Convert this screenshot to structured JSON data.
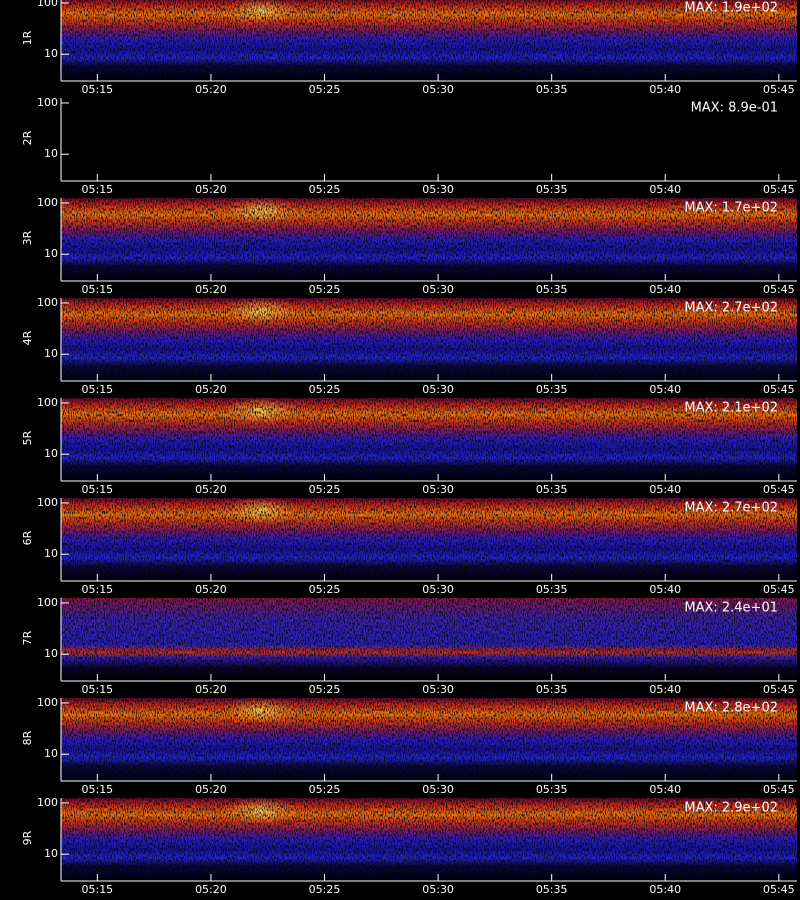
{
  "chart_data": [
    {
      "type": "spectrogram",
      "ylabel": "1R",
      "max": {
        "value": 190,
        "label": "MAX: 1.9e+02"
      },
      "log_y": true,
      "ylim": [
        3,
        125
      ],
      "yticks": [
        10,
        100
      ],
      "xlim": [
        13.4,
        45.8
      ],
      "xticks": [
        {
          "value": 15,
          "label": "05:15"
        },
        {
          "value": 20,
          "label": "05:20"
        },
        {
          "value": 25,
          "label": "05:25"
        },
        {
          "value": 30,
          "label": "05:30"
        },
        {
          "value": 35,
          "label": "05:35"
        },
        {
          "value": 40,
          "label": "05:40"
        },
        {
          "value": 45,
          "label": "05:45"
        }
      ]
    },
    {
      "type": "spectrogram",
      "ylabel": "2R",
      "max": {
        "value": 0.89,
        "label": "MAX: 8.9e-01"
      },
      "log_y": true,
      "ylim": [
        3,
        125
      ],
      "yticks": [
        10,
        100
      ],
      "xlim": [
        13.4,
        45.8
      ],
      "xticks": [
        {
          "value": 15,
          "label": "05:15"
        },
        {
          "value": 20,
          "label": "05:20"
        },
        {
          "value": 25,
          "label": "05:25"
        },
        {
          "value": 30,
          "label": "05:30"
        },
        {
          "value": 35,
          "label": "05:35"
        },
        {
          "value": 40,
          "label": "05:40"
        },
        {
          "value": 45,
          "label": "05:45"
        }
      ]
    },
    {
      "type": "spectrogram",
      "ylabel": "3R",
      "max": {
        "value": 170,
        "label": "MAX: 1.7e+02"
      },
      "log_y": true,
      "ylim": [
        3,
        125
      ],
      "yticks": [
        10,
        100
      ],
      "xlim": [
        13.4,
        45.8
      ],
      "xticks": [
        {
          "value": 15,
          "label": "05:15"
        },
        {
          "value": 20,
          "label": "05:20"
        },
        {
          "value": 25,
          "label": "05:25"
        },
        {
          "value": 30,
          "label": "05:30"
        },
        {
          "value": 35,
          "label": "05:35"
        },
        {
          "value": 40,
          "label": "05:40"
        },
        {
          "value": 45,
          "label": "05:45"
        }
      ]
    },
    {
      "type": "spectrogram",
      "ylabel": "4R",
      "max": {
        "value": 270,
        "label": "MAX: 2.7e+02"
      },
      "log_y": true,
      "ylim": [
        3,
        125
      ],
      "yticks": [
        10,
        100
      ],
      "xlim": [
        13.4,
        45.8
      ],
      "xticks": [
        {
          "value": 15,
          "label": "05:15"
        },
        {
          "value": 20,
          "label": "05:20"
        },
        {
          "value": 25,
          "label": "05:25"
        },
        {
          "value": 30,
          "label": "05:30"
        },
        {
          "value": 35,
          "label": "05:35"
        },
        {
          "value": 40,
          "label": "05:40"
        },
        {
          "value": 45,
          "label": "05:45"
        }
      ]
    },
    {
      "type": "spectrogram",
      "ylabel": "5R",
      "max": {
        "value": 210,
        "label": "MAX: 2.1e+02"
      },
      "log_y": true,
      "ylim": [
        3,
        125
      ],
      "yticks": [
        10,
        100
      ],
      "xlim": [
        13.4,
        45.8
      ],
      "xticks": [
        {
          "value": 15,
          "label": "05:15"
        },
        {
          "value": 20,
          "label": "05:20"
        },
        {
          "value": 25,
          "label": "05:25"
        },
        {
          "value": 30,
          "label": "05:30"
        },
        {
          "value": 35,
          "label": "05:35"
        },
        {
          "value": 40,
          "label": "05:40"
        },
        {
          "value": 45,
          "label": "05:45"
        }
      ]
    },
    {
      "type": "spectrogram",
      "ylabel": "6R",
      "max": {
        "value": 270,
        "label": "MAX: 2.7e+02"
      },
      "log_y": true,
      "ylim": [
        3,
        125
      ],
      "yticks": [
        10,
        100
      ],
      "xlim": [
        13.4,
        45.8
      ],
      "xticks": [
        {
          "value": 15,
          "label": "05:15"
        },
        {
          "value": 20,
          "label": "05:20"
        },
        {
          "value": 25,
          "label": "05:25"
        },
        {
          "value": 30,
          "label": "05:30"
        },
        {
          "value": 35,
          "label": "05:35"
        },
        {
          "value": 40,
          "label": "05:40"
        },
        {
          "value": 45,
          "label": "05:45"
        }
      ]
    },
    {
      "type": "spectrogram",
      "ylabel": "7R",
      "max": {
        "value": 24,
        "label": "MAX: 2.4e+01"
      },
      "log_y": true,
      "ylim": [
        3,
        125
      ],
      "yticks": [
        10,
        100
      ],
      "xlim": [
        13.4,
        45.8
      ],
      "xticks": [
        {
          "value": 15,
          "label": "05:15"
        },
        {
          "value": 20,
          "label": "05:20"
        },
        {
          "value": 25,
          "label": "05:25"
        },
        {
          "value": 30,
          "label": "05:30"
        },
        {
          "value": 35,
          "label": "05:35"
        },
        {
          "value": 40,
          "label": "05:40"
        },
        {
          "value": 45,
          "label": "05:45"
        }
      ]
    },
    {
      "type": "spectrogram",
      "ylabel": "8R",
      "max": {
        "value": 280,
        "label": "MAX: 2.8e+02"
      },
      "log_y": true,
      "ylim": [
        3,
        125
      ],
      "yticks": [
        10,
        100
      ],
      "xlim": [
        13.4,
        45.8
      ],
      "xticks": [
        {
          "value": 15,
          "label": "05:15"
        },
        {
          "value": 20,
          "label": "05:20"
        },
        {
          "value": 25,
          "label": "05:25"
        },
        {
          "value": 30,
          "label": "05:30"
        },
        {
          "value": 35,
          "label": "05:35"
        },
        {
          "value": 40,
          "label": "05:40"
        },
        {
          "value": 45,
          "label": "05:45"
        }
      ]
    },
    {
      "type": "spectrogram",
      "ylabel": "9R",
      "max": {
        "value": 290,
        "label": "MAX: 2.9e+02"
      },
      "log_y": true,
      "ylim": [
        3,
        125
      ],
      "yticks": [
        10,
        100
      ],
      "xlim": [
        13.4,
        45.8
      ],
      "xticks": [
        {
          "value": 15,
          "label": "05:15"
        },
        {
          "value": 20,
          "label": "05:20"
        },
        {
          "value": 25,
          "label": "05:25"
        },
        {
          "value": 30,
          "label": "05:30"
        },
        {
          "value": 35,
          "label": "05:35"
        },
        {
          "value": 40,
          "label": "05:40"
        },
        {
          "value": 45,
          "label": "05:45"
        }
      ]
    }
  ]
}
